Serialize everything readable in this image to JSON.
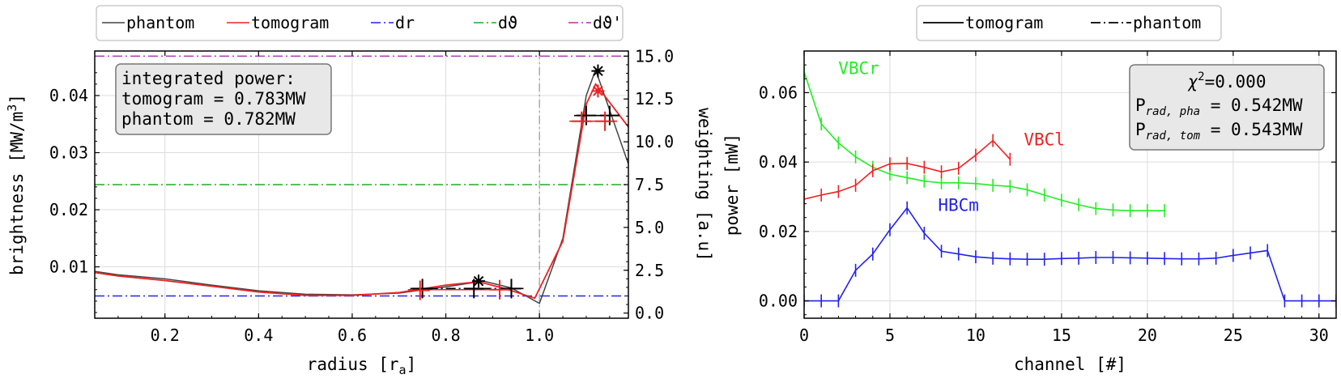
{
  "chart_data": [
    {
      "type": "line",
      "xlabel": "radius [r",
      "xlabel_sub": "a",
      "xlabel_end": "]",
      "ylabel": "brightness [MW/m",
      "ylabel_sup": "3",
      "ylabel_end": "]",
      "ylabel_right": "weighting [a.u]",
      "xlim": [
        0.05,
        1.19
      ],
      "ylim": [
        0.001,
        0.0478
      ],
      "ylim_right": [
        -0.3,
        15.3
      ],
      "xticks": [
        "0.2",
        "0.4",
        "0.6",
        "0.8",
        "1.0"
      ],
      "xtick_values": [
        0.2,
        0.4,
        0.6,
        0.8,
        1.0
      ],
      "yticks": [
        "0.01",
        "0.02",
        "0.03",
        "0.04"
      ],
      "ytick_values": [
        0.01,
        0.02,
        0.03,
        0.04
      ],
      "yticks_right": [
        "0.0",
        "2.5",
        "5.0",
        "7.5",
        "10.0",
        "12.5",
        "15.0"
      ],
      "ytick_right_values": [
        0,
        2.5,
        5,
        7.5,
        10,
        12.5,
        15
      ],
      "grid": true,
      "legend_position": "top, outside",
      "legend": [
        {
          "label": "phantom",
          "color": "#444444",
          "dash": "solid"
        },
        {
          "label": "tomogram",
          "color": "#ee2222",
          "dash": "solid"
        },
        {
          "label": "dr",
          "color": "#2222ee",
          "dash": "dashdot"
        },
        {
          "label": "dϑ",
          "color": "#22aa22",
          "dash": "dashdot"
        },
        {
          "label": "dϑ'",
          "color": "#aa33aa",
          "dash": "dashdot"
        }
      ],
      "series": [
        {
          "name": "phantom",
          "color": "#444444",
          "x": [
            0.05,
            0.1,
            0.2,
            0.3,
            0.4,
            0.5,
            0.6,
            0.7,
            0.8,
            0.88,
            0.94,
            1.0,
            1.05,
            1.1,
            1.12,
            1.19
          ],
          "y": [
            0.0092,
            0.0086,
            0.0079,
            0.0068,
            0.0058,
            0.0052,
            0.0051,
            0.0054,
            0.0065,
            0.0075,
            0.0063,
            0.0036,
            0.015,
            0.04,
            0.0445,
            0.028
          ]
        },
        {
          "name": "tomogram",
          "color": "#ee2222",
          "x": [
            0.05,
            0.1,
            0.2,
            0.3,
            0.4,
            0.5,
            0.6,
            0.7,
            0.8,
            0.87,
            0.93,
            0.99,
            1.05,
            1.1,
            1.12,
            1.19
          ],
          "y": [
            0.009,
            0.0084,
            0.0076,
            0.0066,
            0.0056,
            0.005,
            0.005,
            0.0055,
            0.0068,
            0.0074,
            0.0061,
            0.0045,
            0.0145,
            0.0385,
            0.042,
            0.0345
          ]
        }
      ],
      "hlines": [
        {
          "name": "dr",
          "color": "#2222ee",
          "y_right": 1.0
        },
        {
          "name": "dϑ",
          "color": "#22aa22",
          "y_right": 7.5
        },
        {
          "name": "dϑ'",
          "color": "#aa33aa",
          "y_right": 15.0
        }
      ],
      "vline": {
        "x": 1.0,
        "color": "#999999"
      },
      "markers_plus": [
        {
          "x": 0.75,
          "y": 0.0062,
          "color": "#000000"
        },
        {
          "x": 0.86,
          "y": 0.0062,
          "color": "#000000"
        },
        {
          "x": 0.94,
          "y": 0.0062,
          "color": "#000000"
        },
        {
          "x": 0.745,
          "y": 0.0059,
          "color": "#ee2222"
        },
        {
          "x": 0.915,
          "y": 0.006,
          "color": "#ee2222"
        },
        {
          "x": 1.1,
          "y": 0.0365,
          "color": "#000000"
        },
        {
          "x": 1.15,
          "y": 0.0365,
          "color": "#000000"
        },
        {
          "x": 1.09,
          "y": 0.0355,
          "color": "#ee2222"
        },
        {
          "x": 1.14,
          "y": 0.0355,
          "color": "#ee2222"
        }
      ],
      "markers_star": [
        {
          "x": 0.87,
          "y": 0.0075,
          "color": "#000000"
        },
        {
          "x": 1.125,
          "y": 0.0443,
          "color": "#000000"
        },
        {
          "x": 1.125,
          "y": 0.0408,
          "color": "#ee2222"
        }
      ],
      "info_box": [
        "integrated power:",
        "tomogram = 0.783MW",
        "phantom = 0.782MW"
      ]
    },
    {
      "type": "line",
      "xlabel": "channel [#]",
      "ylabel": "power [mW]",
      "xlim": [
        0,
        31
      ],
      "ylim": [
        -0.005,
        0.072
      ],
      "xticks": [
        "0",
        "5",
        "10",
        "15",
        "20",
        "25",
        "30"
      ],
      "xtick_values": [
        0,
        5,
        10,
        15,
        20,
        25,
        30
      ],
      "yticks": [
        "0.00",
        "0.02",
        "0.04",
        "0.06"
      ],
      "ytick_values": [
        0,
        0.02,
        0.04,
        0.06
      ],
      "grid": true,
      "legend_position": "top, outside",
      "legend": [
        {
          "label": "tomogram",
          "color": "#000000",
          "dash": "solid"
        },
        {
          "label": "phantom",
          "color": "#000000",
          "dash": "dashdot"
        }
      ],
      "series": [
        {
          "name": "VBCr",
          "color": "#22ee22",
          "x": [
            0,
            1,
            2,
            3,
            4,
            5,
            6,
            7,
            8,
            9,
            10,
            11,
            12,
            13,
            14,
            15,
            16,
            17,
            18,
            19,
            20,
            21
          ],
          "y": [
            0.066,
            0.051,
            0.0455,
            0.0415,
            0.0385,
            0.0365,
            0.0355,
            0.0345,
            0.034,
            0.034,
            0.0338,
            0.0333,
            0.033,
            0.032,
            0.0305,
            0.029,
            0.0277,
            0.0266,
            0.0262,
            0.026,
            0.026,
            0.026
          ]
        },
        {
          "name": "VBCl",
          "color": "#ee2222",
          "x": [
            0,
            1,
            2,
            3,
            4,
            5,
            6,
            7,
            8,
            9,
            10,
            11,
            12
          ],
          "y": [
            0.0293,
            0.0305,
            0.0315,
            0.0333,
            0.0375,
            0.0395,
            0.0396,
            0.0385,
            0.0372,
            0.0382,
            0.042,
            0.0462,
            0.0408
          ]
        },
        {
          "name": "HBCm",
          "color": "#2222ee",
          "x": [
            0,
            1,
            2,
            3,
            4,
            5,
            6,
            7,
            8,
            9,
            10,
            11,
            12,
            13,
            14,
            15,
            16,
            17,
            18,
            19,
            20,
            21,
            22,
            23,
            24,
            25,
            26,
            27,
            28,
            29,
            30,
            31
          ],
          "y": [
            0,
            0,
            0,
            0.0088,
            0.0135,
            0.0205,
            0.0268,
            0.0195,
            0.0143,
            0.0135,
            0.0127,
            0.0123,
            0.0121,
            0.012,
            0.012,
            0.0122,
            0.0123,
            0.0125,
            0.0125,
            0.0124,
            0.0123,
            0.0122,
            0.0121,
            0.0121,
            0.0123,
            0.0131,
            0.0138,
            0.0145,
            0,
            0,
            0,
            0
          ]
        }
      ],
      "annotations": [
        {
          "text": "VBCr",
          "color": "#22ee22",
          "x": 1.0,
          "y": 0.067
        },
        {
          "text": "VBCl",
          "color": "#ee2222",
          "x": 12.0,
          "y": 0.0465
        },
        {
          "text": "HBCm",
          "color": "#2222ee",
          "x": 7.0,
          "y": 0.0275
        }
      ],
      "info_box": {
        "chi": "χ",
        "chi_sup": "2",
        "chi_val": "=0.000",
        "rows": [
          {
            "p": "P",
            "sub": "rad, pha",
            "val": " = 0.542MW"
          },
          {
            "p": "P",
            "sub": "rad, tom",
            "val": " = 0.543MW"
          }
        ]
      }
    }
  ]
}
